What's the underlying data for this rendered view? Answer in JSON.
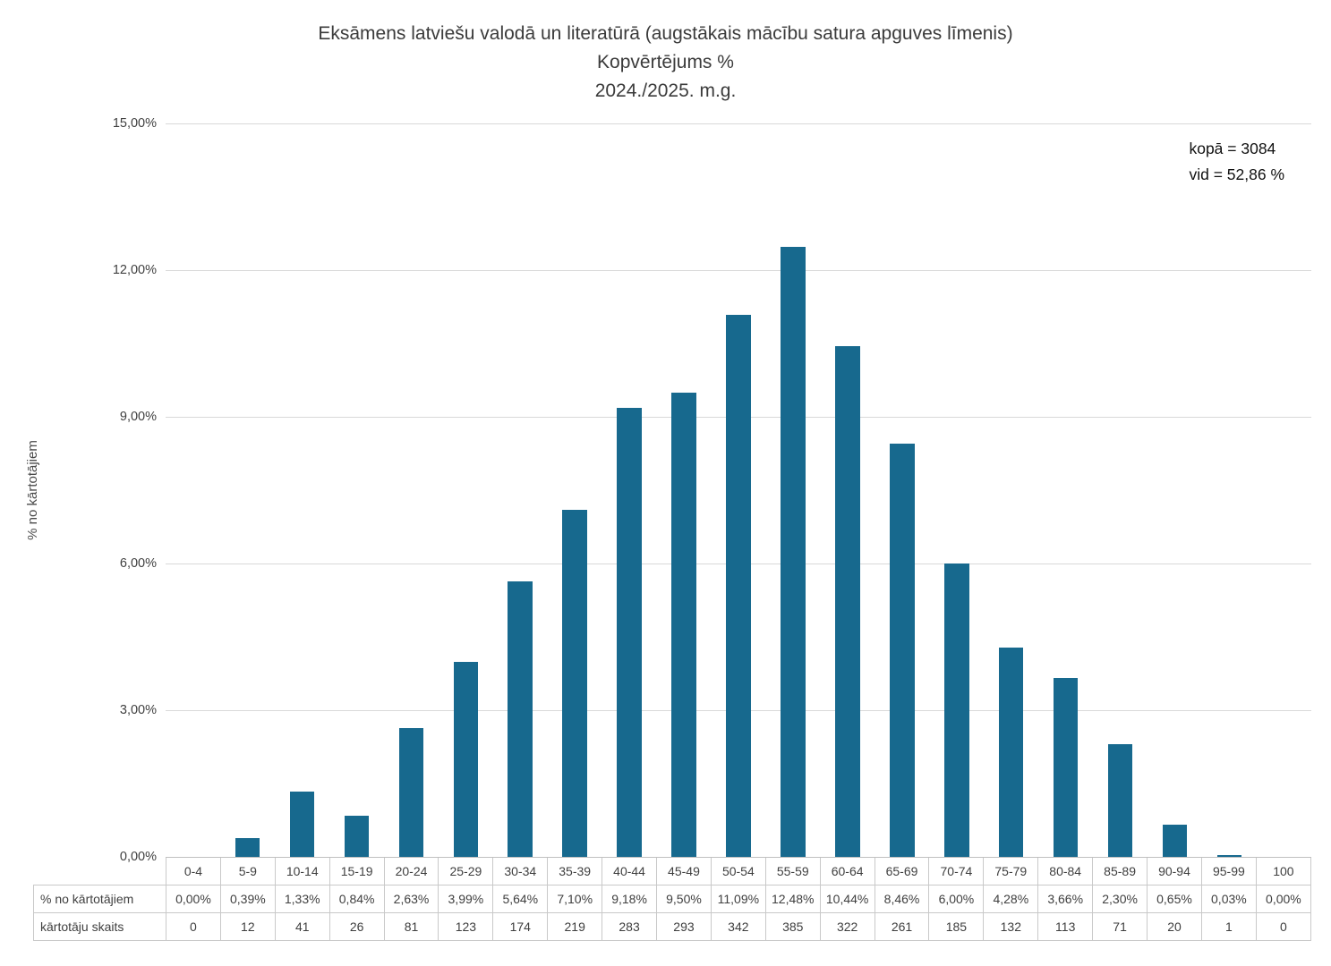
{
  "title": {
    "line1": "Eksāmens latviešu valodā un literatūrā (augstākais mācību satura apguves līmenis)",
    "line2": "Kopvērtējums %",
    "line3": "2024./2025. m.g."
  },
  "annotation": {
    "total": "kopā = 3084",
    "mean": "vid = 52,86 %"
  },
  "y_axis": {
    "title": "% no kārtotājiem",
    "tick_labels": [
      "15,00%",
      "12,00%",
      "9,00%",
      "6,00%",
      "3,00%",
      "0,00%"
    ],
    "max": 15,
    "tick_step": 3
  },
  "table": {
    "percent_row_label": "% no kārtotājiem",
    "count_row_label": "kārtotāju skaits"
  },
  "chart_data": {
    "type": "bar",
    "title": "Eksāmens latviešu valodā un literatūrā (augstākais mācību satura apguves līmenis) Kopvērtējums % 2024./2025. m.g.",
    "xlabel": "",
    "ylabel": "% no kārtotājiem",
    "ylim": [
      0,
      15
    ],
    "grid": true,
    "legend_position": "none",
    "bar_color": "#17698e",
    "categories": [
      "0-4",
      "5-9",
      "10-14",
      "15-19",
      "20-24",
      "25-29",
      "30-34",
      "35-39",
      "40-44",
      "45-49",
      "50-54",
      "55-59",
      "60-64",
      "65-69",
      "70-74",
      "75-79",
      "80-84",
      "85-89",
      "90-94",
      "95-99",
      "100"
    ],
    "series": [
      {
        "name": "% no kārtotājiem",
        "values": [
          0.0,
          0.39,
          1.33,
          0.84,
          2.63,
          3.99,
          5.64,
          7.1,
          9.18,
          9.5,
          11.09,
          12.48,
          10.44,
          8.46,
          6.0,
          4.28,
          3.66,
          2.3,
          0.65,
          0.03,
          0.0
        ],
        "labels": [
          "0,00%",
          "0,39%",
          "1,33%",
          "0,84%",
          "2,63%",
          "3,99%",
          "5,64%",
          "7,10%",
          "9,18%",
          "9,50%",
          "11,09%",
          "12,48%",
          "10,44%",
          "8,46%",
          "6,00%",
          "4,28%",
          "3,66%",
          "2,30%",
          "0,65%",
          "0,03%",
          "0,00%"
        ]
      },
      {
        "name": "kārtotāju skaits",
        "values": [
          0,
          12,
          41,
          26,
          81,
          123,
          174,
          219,
          283,
          293,
          342,
          385,
          322,
          261,
          185,
          132,
          113,
          71,
          20,
          1,
          0
        ],
        "labels": [
          "0",
          "12",
          "41",
          "26",
          "81",
          "123",
          "174",
          "219",
          "283",
          "293",
          "342",
          "385",
          "322",
          "261",
          "185",
          "132",
          "113",
          "71",
          "20",
          "1",
          "0"
        ]
      }
    ],
    "annotations": [
      "kopā = 3084",
      "vid = 52,86 %"
    ]
  }
}
